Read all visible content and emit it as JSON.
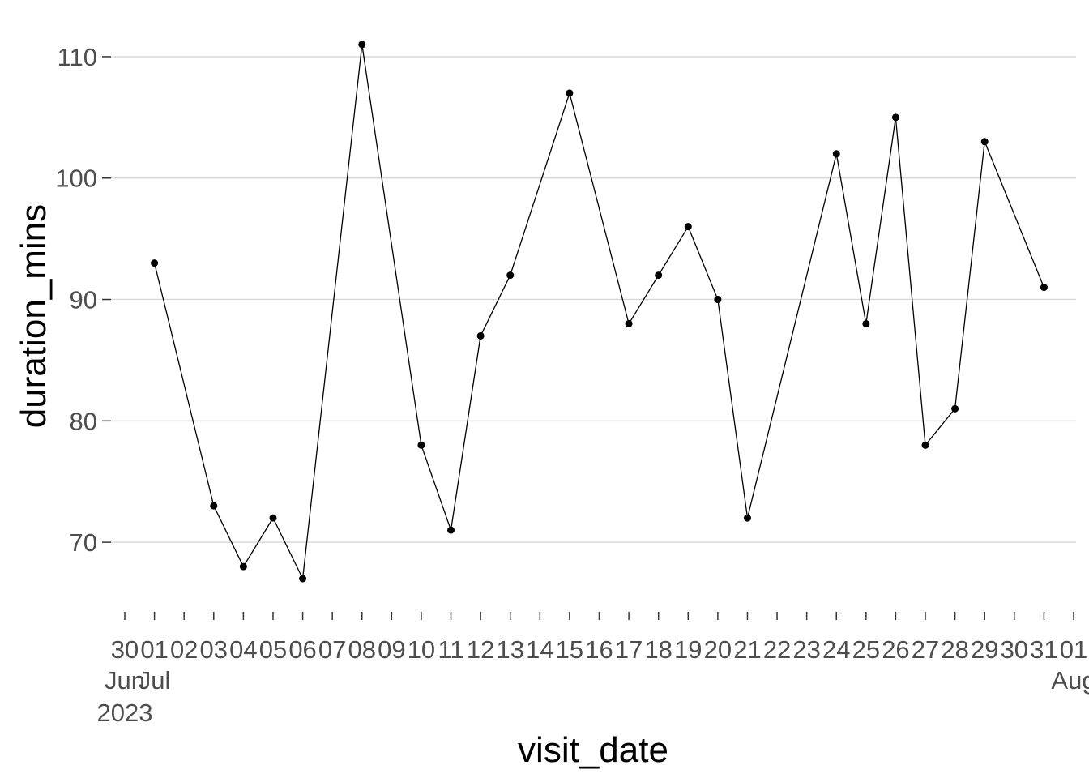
{
  "chart_data": {
    "type": "line",
    "xlabel": "visit_date",
    "ylabel": "duration_mins",
    "x": [
      "2023-07-01",
      "2023-07-03",
      "2023-07-04",
      "2023-07-05",
      "2023-07-06",
      "2023-07-08",
      "2023-07-10",
      "2023-07-11",
      "2023-07-12",
      "2023-07-13",
      "2023-07-15",
      "2023-07-17",
      "2023-07-18",
      "2023-07-19",
      "2023-07-20",
      "2023-07-21",
      "2023-07-24",
      "2023-07-25",
      "2023-07-26",
      "2023-07-27",
      "2023-07-28",
      "2023-07-29",
      "2023-07-31"
    ],
    "y": [
      93,
      73,
      68,
      72,
      67,
      111,
      78,
      71,
      87,
      92,
      107,
      88,
      92,
      96,
      90,
      72,
      102,
      88,
      105,
      78,
      81,
      103,
      91
    ],
    "xlim": [
      "2023-06-30",
      "2023-08-01"
    ],
    "ylim": [
      65,
      112
    ],
    "y_ticks": [
      70,
      80,
      90,
      100,
      110
    ],
    "x_tick_labels": [
      {
        "date": "2023-06-30",
        "day": "30",
        "month": "Jun",
        "year": "2023"
      },
      {
        "date": "2023-07-01",
        "day": "01",
        "month": "Jul",
        "year": ""
      },
      {
        "date": "2023-07-02",
        "day": "02",
        "month": "",
        "year": ""
      },
      {
        "date": "2023-07-03",
        "day": "03",
        "month": "",
        "year": ""
      },
      {
        "date": "2023-07-04",
        "day": "04",
        "month": "",
        "year": ""
      },
      {
        "date": "2023-07-05",
        "day": "05",
        "month": "",
        "year": ""
      },
      {
        "date": "2023-07-06",
        "day": "06",
        "month": "",
        "year": ""
      },
      {
        "date": "2023-07-07",
        "day": "07",
        "month": "",
        "year": ""
      },
      {
        "date": "2023-07-08",
        "day": "08",
        "month": "",
        "year": ""
      },
      {
        "date": "2023-07-09",
        "day": "09",
        "month": "",
        "year": ""
      },
      {
        "date": "2023-07-10",
        "day": "10",
        "month": "",
        "year": ""
      },
      {
        "date": "2023-07-11",
        "day": "11",
        "month": "",
        "year": ""
      },
      {
        "date": "2023-07-12",
        "day": "12",
        "month": "",
        "year": ""
      },
      {
        "date": "2023-07-13",
        "day": "13",
        "month": "",
        "year": ""
      },
      {
        "date": "2023-07-14",
        "day": "14",
        "month": "",
        "year": ""
      },
      {
        "date": "2023-07-15",
        "day": "15",
        "month": "",
        "year": ""
      },
      {
        "date": "2023-07-16",
        "day": "16",
        "month": "",
        "year": ""
      },
      {
        "date": "2023-07-17",
        "day": "17",
        "month": "",
        "year": ""
      },
      {
        "date": "2023-07-18",
        "day": "18",
        "month": "",
        "year": ""
      },
      {
        "date": "2023-07-19",
        "day": "19",
        "month": "",
        "year": ""
      },
      {
        "date": "2023-07-20",
        "day": "20",
        "month": "",
        "year": ""
      },
      {
        "date": "2023-07-21",
        "day": "21",
        "month": "",
        "year": ""
      },
      {
        "date": "2023-07-22",
        "day": "22",
        "month": "",
        "year": ""
      },
      {
        "date": "2023-07-23",
        "day": "23",
        "month": "",
        "year": ""
      },
      {
        "date": "2023-07-24",
        "day": "24",
        "month": "",
        "year": ""
      },
      {
        "date": "2023-07-25",
        "day": "25",
        "month": "",
        "year": ""
      },
      {
        "date": "2023-07-26",
        "day": "26",
        "month": "",
        "year": ""
      },
      {
        "date": "2023-07-27",
        "day": "27",
        "month": "",
        "year": ""
      },
      {
        "date": "2023-07-28",
        "day": "28",
        "month": "",
        "year": ""
      },
      {
        "date": "2023-07-29",
        "day": "29",
        "month": "",
        "year": ""
      },
      {
        "date": "2023-07-30",
        "day": "30",
        "month": "",
        "year": ""
      },
      {
        "date": "2023-07-31",
        "day": "31",
        "month": "",
        "year": ""
      },
      {
        "date": "2023-08-01",
        "day": "01",
        "month": "Aug",
        "year": ""
      }
    ],
    "grid": true,
    "legend": "none",
    "colors": {
      "line": "#000000",
      "points": "#000000",
      "grid": "#d9d9d9",
      "tick_text": "#4d4d4d"
    }
  }
}
